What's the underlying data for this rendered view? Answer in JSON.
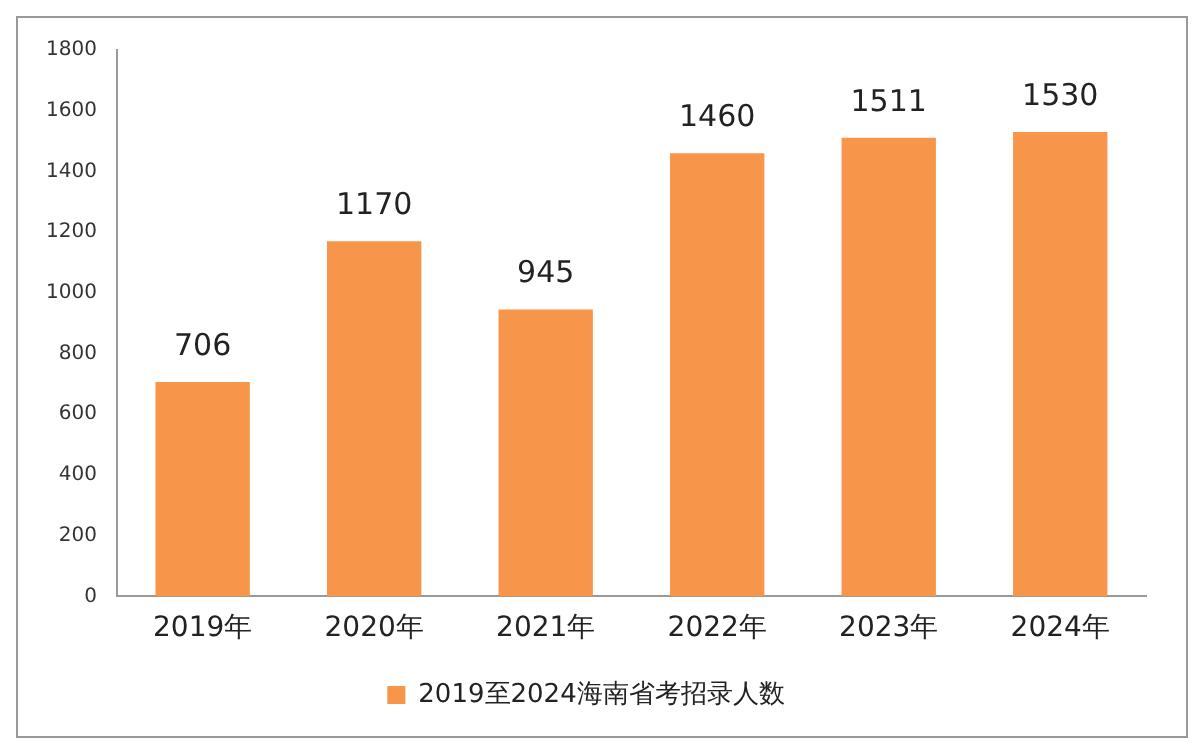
{
  "chart_data": {
    "type": "bar",
    "categories": [
      "2019年",
      "2020年",
      "2021年",
      "2022年",
      "2023年",
      "2024年"
    ],
    "series": [
      {
        "name": "2019至2024海南省考招录人数",
        "color": "#f7964a",
        "values": [
          706,
          1170,
          945,
          1460,
          1511,
          1530
        ]
      }
    ],
    "ylim": [
      0,
      1800
    ],
    "yticks": [
      0,
      200,
      400,
      600,
      800,
      1000,
      1200,
      1400,
      1600,
      1800
    ],
    "grid": false,
    "legend": "bottom",
    "data_labels": true
  }
}
